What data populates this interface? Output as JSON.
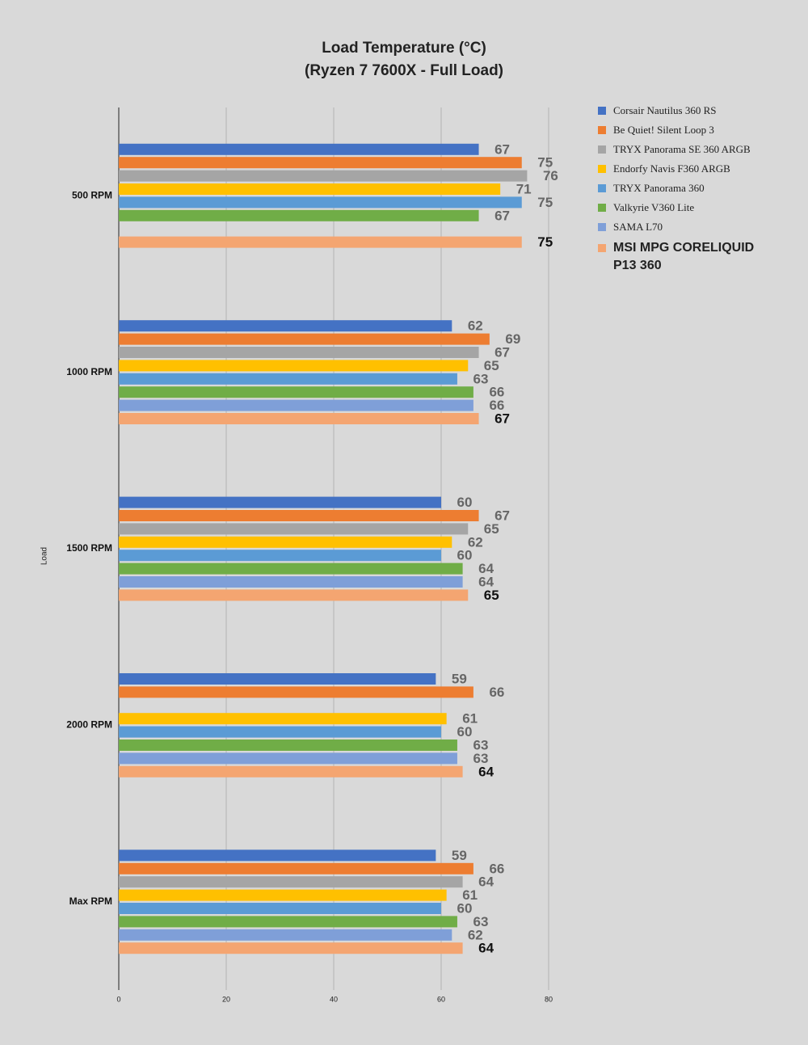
{
  "chart_data": {
    "type": "hbar",
    "title": "Load Temperature (°C)",
    "subtitle": "(Ryzen 7 7600X - Full Load)",
    "y_label": "Load",
    "categories": [
      "500 RPM",
      "1000 RPM",
      "1500 RPM",
      "2000 RPM",
      "Max RPM"
    ],
    "series": [
      {
        "name": "Corsair Nautilus 360 RS",
        "color": "#4472c4",
        "values": [
          67,
          62,
          60,
          59,
          59
        ]
      },
      {
        "name": "Be Quiet! Silent Loop 3",
        "color": "#ed7d31",
        "values": [
          75,
          69,
          67,
          66,
          66
        ]
      },
      {
        "name": "TRYX Panorama SE 360 ARGB",
        "color": "#a5a5a5",
        "values": [
          76,
          67,
          65,
          null,
          64
        ]
      },
      {
        "name": "Endorfy Navis F360 ARGB",
        "color": "#ffc000",
        "values": [
          71,
          65,
          62,
          61,
          61
        ]
      },
      {
        "name": "TRYX Panorama 360",
        "color": "#5b9bd5",
        "values": [
          75,
          63,
          60,
          60,
          60
        ]
      },
      {
        "name": "Valkyrie V360 Lite",
        "color": "#70ad47",
        "values": [
          67,
          66,
          64,
          63,
          63
        ]
      },
      {
        "name": "SAMA L70",
        "color": "#7f9fd8",
        "values": [
          null,
          66,
          64,
          63,
          62
        ]
      },
      {
        "name": "MSI MPG CORELIQUID P13 360",
        "color": "#f4a571",
        "values": [
          75,
          67,
          65,
          64,
          64
        ]
      }
    ],
    "xlim": [
      0,
      80
    ],
    "xticks": [
      0,
      20,
      40,
      60,
      80
    ],
    "grid": true,
    "legend": "right"
  }
}
